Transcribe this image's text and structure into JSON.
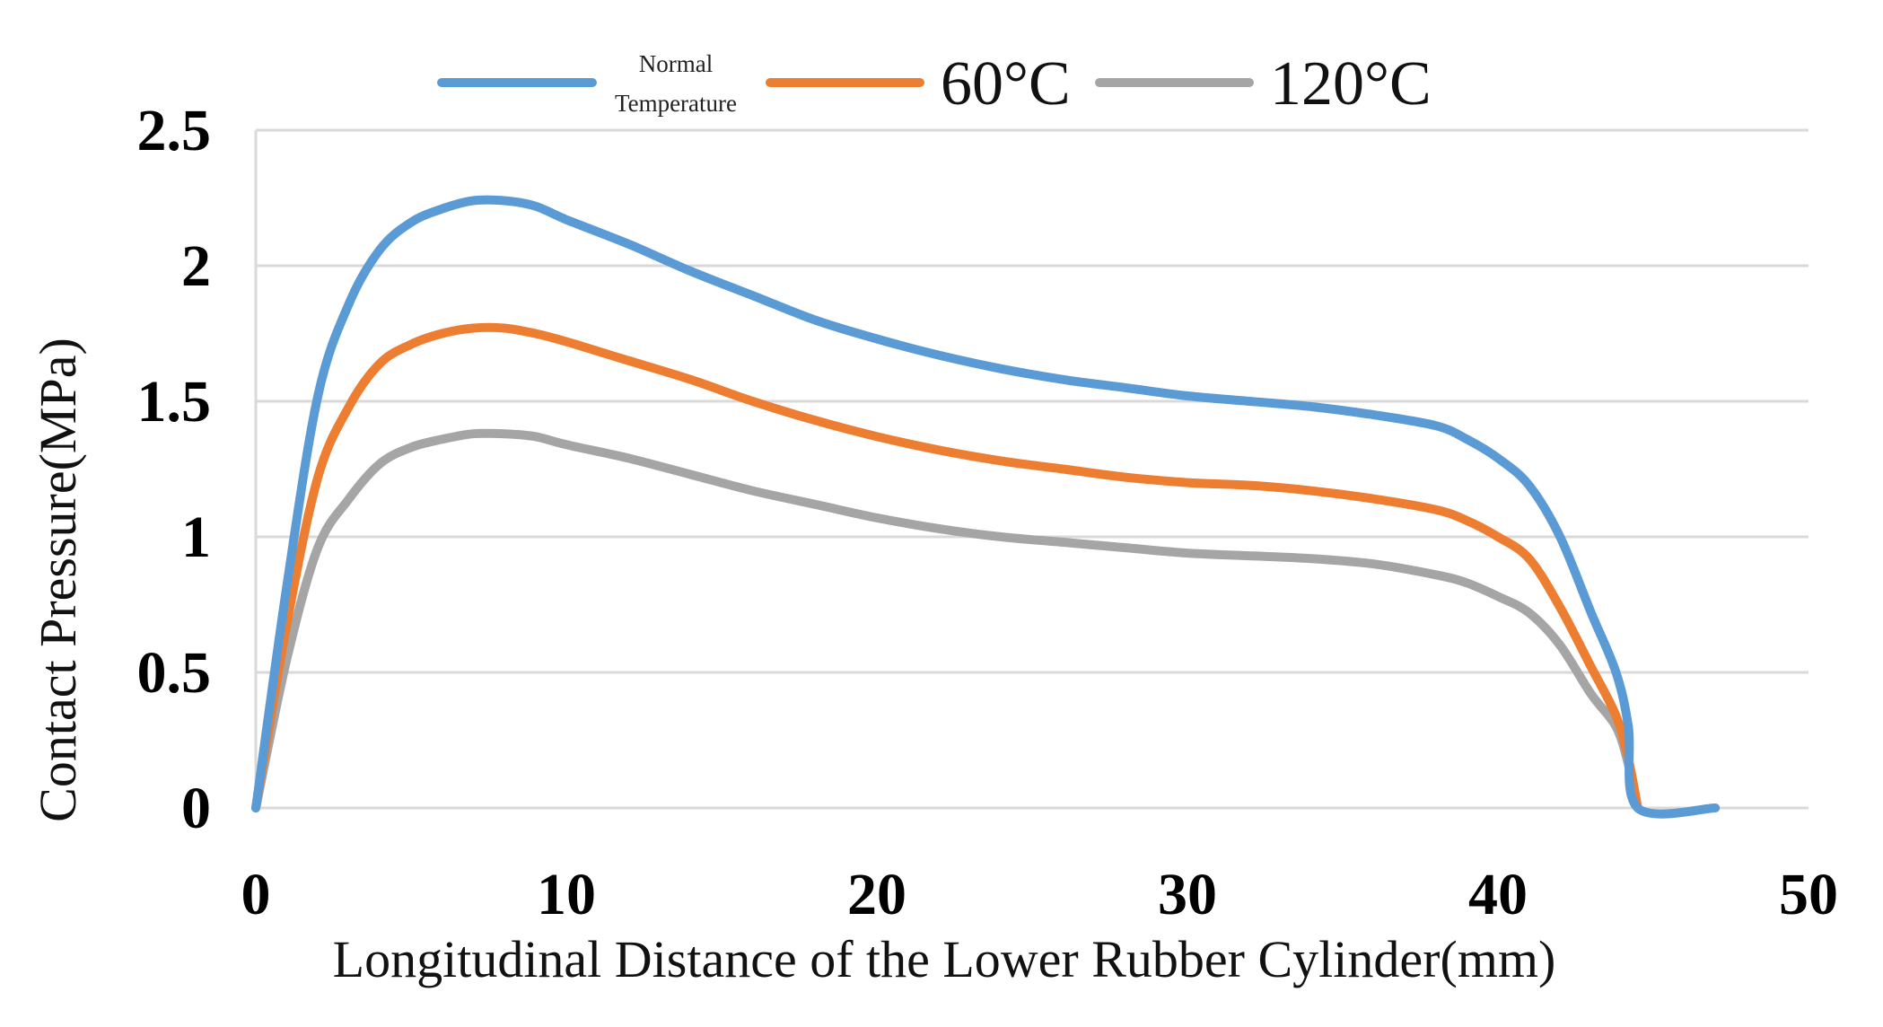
{
  "chart_data": {
    "type": "line",
    "xlabel": "Longitudinal Distance of the Lower Rubber Cylinder(mm)",
    "ylabel": "Contact Pressure(MPa)",
    "xlim": [
      0,
      50
    ],
    "ylim": [
      0,
      2.5
    ],
    "x_ticks": [
      "0",
      "10",
      "20",
      "30",
      "40",
      "50"
    ],
    "y_ticks": [
      "0",
      "0.5",
      "1",
      "1.5",
      "2",
      "2.5"
    ],
    "grid": "horizontal",
    "legend_position": "top",
    "series": [
      {
        "name_lines": [
          "Normal",
          "Temperature"
        ],
        "color": "#5b9bd5",
        "points": [
          [
            0,
            0
          ],
          [
            1,
            0.82
          ],
          [
            2,
            1.52
          ],
          [
            3,
            1.86
          ],
          [
            4,
            2.06
          ],
          [
            5,
            2.16
          ],
          [
            6,
            2.21
          ],
          [
            7,
            2.24
          ],
          [
            8,
            2.24
          ],
          [
            9,
            2.22
          ],
          [
            10,
            2.17
          ],
          [
            12,
            2.08
          ],
          [
            14,
            1.98
          ],
          [
            16,
            1.89
          ],
          [
            18,
            1.8
          ],
          [
            20,
            1.73
          ],
          [
            22,
            1.67
          ],
          [
            24,
            1.62
          ],
          [
            26,
            1.58
          ],
          [
            28,
            1.55
          ],
          [
            30,
            1.52
          ],
          [
            32,
            1.5
          ],
          [
            34,
            1.48
          ],
          [
            36,
            1.45
          ],
          [
            38,
            1.41
          ],
          [
            39,
            1.36
          ],
          [
            40,
            1.29
          ],
          [
            41,
            1.19
          ],
          [
            42,
            1.0
          ],
          [
            43,
            0.72
          ],
          [
            43.8,
            0.5
          ],
          [
            44.2,
            0.3
          ],
          [
            44.5,
            0.0
          ],
          [
            47,
            0.0
          ]
        ]
      },
      {
        "name": "60°C",
        "color": "#ed7d31",
        "points": [
          [
            0,
            0
          ],
          [
            1,
            0.68
          ],
          [
            2,
            1.22
          ],
          [
            3,
            1.48
          ],
          [
            4,
            1.64
          ],
          [
            5,
            1.71
          ],
          [
            6,
            1.75
          ],
          [
            7,
            1.77
          ],
          [
            8,
            1.77
          ],
          [
            9,
            1.75
          ],
          [
            10,
            1.72
          ],
          [
            12,
            1.65
          ],
          [
            14,
            1.58
          ],
          [
            16,
            1.5
          ],
          [
            18,
            1.43
          ],
          [
            20,
            1.37
          ],
          [
            22,
            1.32
          ],
          [
            24,
            1.28
          ],
          [
            26,
            1.25
          ],
          [
            28,
            1.22
          ],
          [
            30,
            1.2
          ],
          [
            32,
            1.19
          ],
          [
            34,
            1.17
          ],
          [
            36,
            1.14
          ],
          [
            38,
            1.1
          ],
          [
            39,
            1.06
          ],
          [
            40,
            1.0
          ],
          [
            41,
            0.92
          ],
          [
            42,
            0.74
          ],
          [
            43,
            0.52
          ],
          [
            43.8,
            0.34
          ],
          [
            44.2,
            0.18
          ],
          [
            44.5,
            0.0
          ]
        ]
      },
      {
        "name": "120°C",
        "color": "#a5a5a5",
        "points": [
          [
            0,
            0
          ],
          [
            1,
            0.55
          ],
          [
            2,
            0.96
          ],
          [
            3,
            1.14
          ],
          [
            4,
            1.27
          ],
          [
            5,
            1.33
          ],
          [
            6,
            1.36
          ],
          [
            7,
            1.38
          ],
          [
            8,
            1.38
          ],
          [
            9,
            1.37
          ],
          [
            10,
            1.34
          ],
          [
            12,
            1.29
          ],
          [
            14,
            1.23
          ],
          [
            16,
            1.17
          ],
          [
            18,
            1.12
          ],
          [
            20,
            1.07
          ],
          [
            22,
            1.03
          ],
          [
            24,
            1.0
          ],
          [
            26,
            0.98
          ],
          [
            28,
            0.96
          ],
          [
            30,
            0.94
          ],
          [
            32,
            0.93
          ],
          [
            34,
            0.92
          ],
          [
            36,
            0.9
          ],
          [
            38,
            0.86
          ],
          [
            39,
            0.83
          ],
          [
            40,
            0.78
          ],
          [
            41,
            0.72
          ],
          [
            42,
            0.6
          ],
          [
            43,
            0.42
          ],
          [
            43.8,
            0.3
          ],
          [
            44.2,
            0.16
          ],
          [
            44.5,
            0.0
          ]
        ]
      }
    ]
  }
}
